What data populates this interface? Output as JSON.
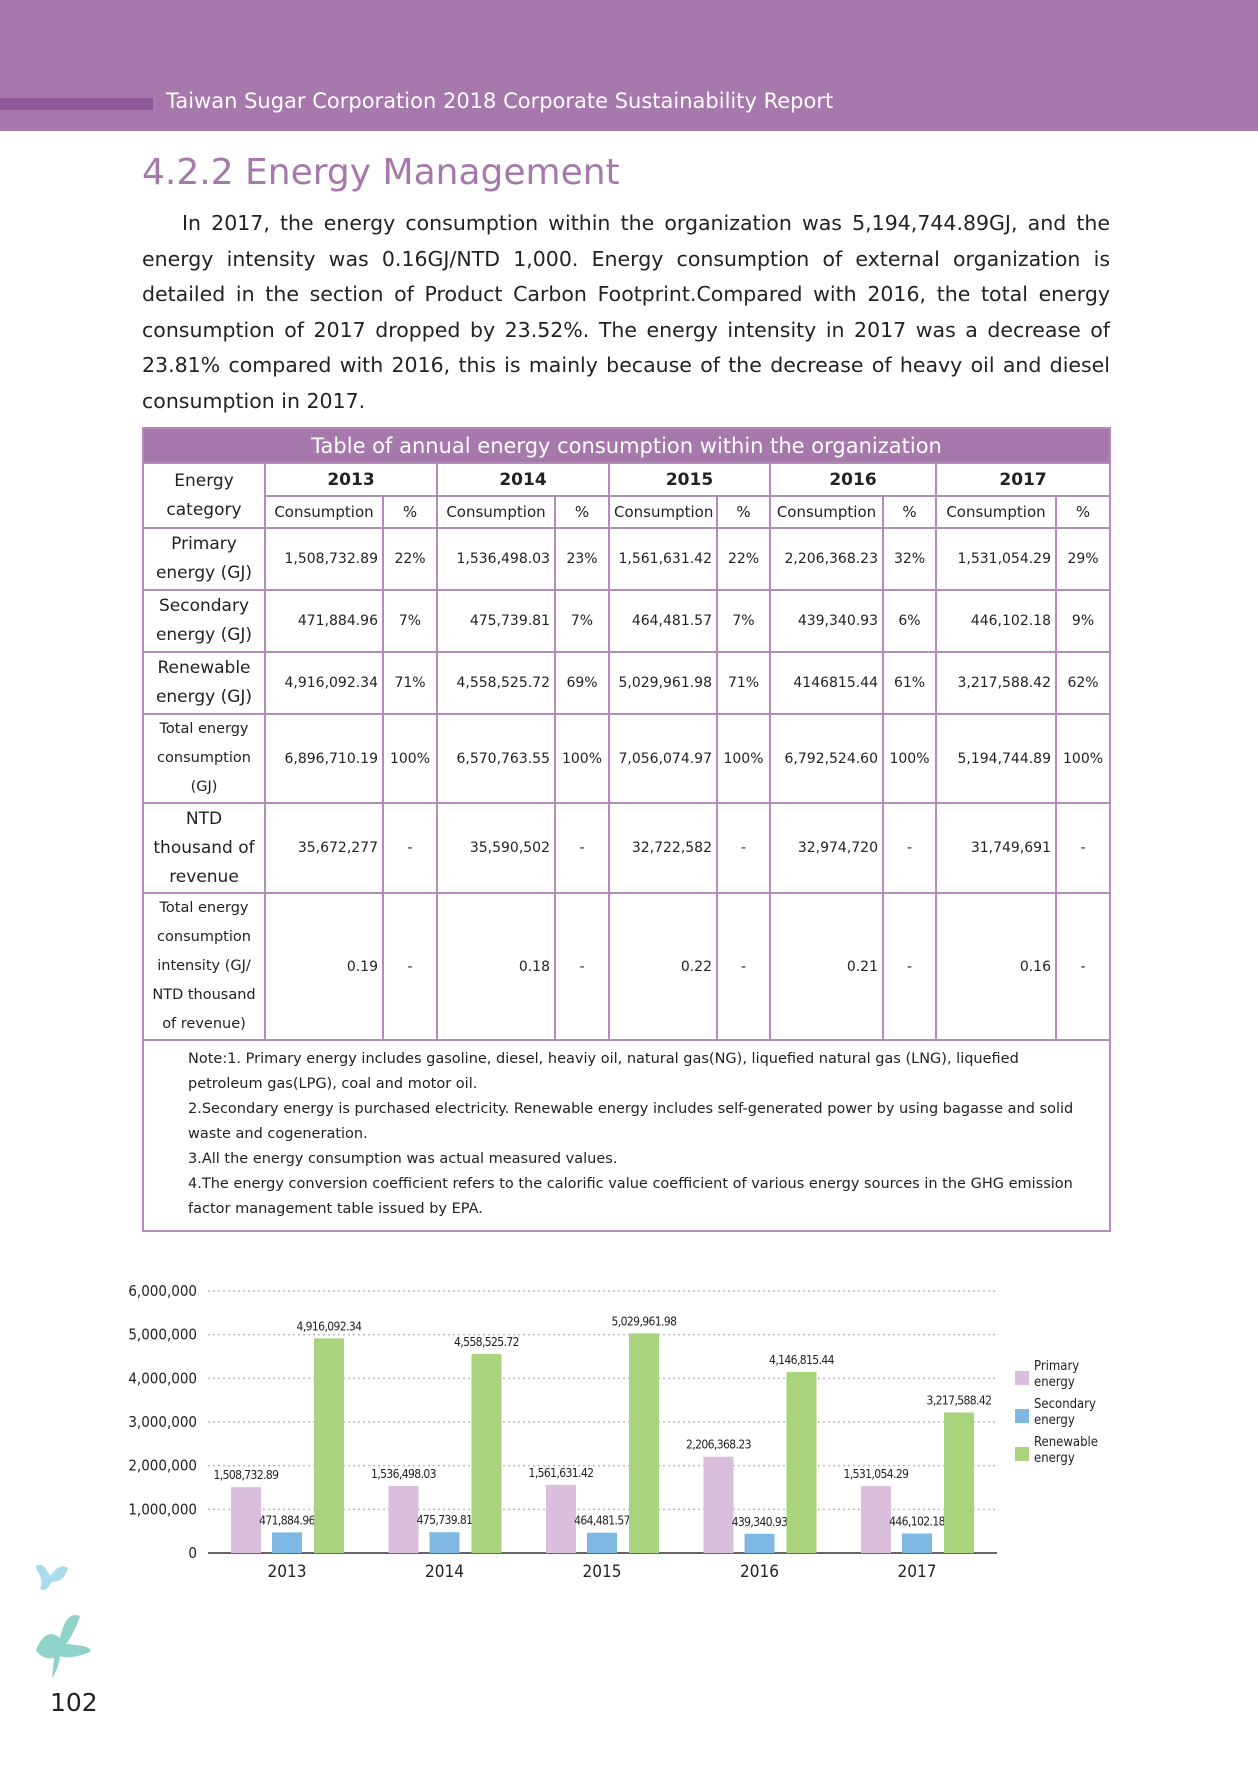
{
  "header": {
    "title": "Taiwan Sugar Corporation 2018 Corporate Sustainability Report"
  },
  "section": {
    "title": "4.2.2 Energy Management",
    "paragraph": "In 2017, the energy consumption within the organization was 5,194,744.89GJ, and the energy intensity was 0.16GJ/NTD 1,000. Energy consumption of external organization is detailed in the section of Product Carbon Footprint.Compared with 2016, the total energy consumption of 2017 dropped by 23.52%. The energy intensity in 2017 was a decrease of 23.81% compared with 2016, this is mainly because of the decrease of heavy oil and diesel consumption in 2017."
  },
  "table": {
    "title": "Table of annual energy consumption within the organization",
    "corner": "Energy category",
    "years": [
      "2013",
      "2014",
      "2015",
      "2016",
      "2017"
    ],
    "subheaders": [
      "Consumption",
      "%"
    ],
    "rows": [
      {
        "label": "Primary energy (GJ)",
        "cells": [
          "1,508,732.89",
          "22%",
          "1,536,498.03",
          "23%",
          "1,561,631.42",
          "22%",
          "2,206,368.23",
          "32%",
          "1,531,054.29",
          "29%"
        ]
      },
      {
        "label": "Secondary energy (GJ)",
        "cells": [
          "471,884.96",
          "7%",
          "475,739.81",
          "7%",
          "464,481.57",
          "7%",
          "439,340.93",
          "6%",
          "446,102.18",
          "9%"
        ]
      },
      {
        "label": "Renewable energy (GJ)",
        "cells": [
          "4,916,092.34",
          "71%",
          "4,558,525.72",
          "69%",
          "5,029,961.98",
          "71%",
          "4146815.44",
          "61%",
          "3,217,588.42",
          "62%"
        ]
      },
      {
        "label": "Total energy consumption (GJ)",
        "cells": [
          "6,896,710.19",
          "100%",
          "6,570,763.55",
          "100%",
          "7,056,074.97",
          "100%",
          "6,792,524.60",
          "100%",
          "5,194,744.89",
          "100%"
        ]
      },
      {
        "label": "NTD thousand of revenue",
        "cells": [
          "35,672,277",
          "-",
          "35,590,502",
          "-",
          "32,722,582",
          "-",
          "32,974,720",
          "-",
          "31,749,691",
          "-"
        ]
      },
      {
        "label": "Total energy consumption intensity (GJ/ NTD thousand of revenue)",
        "cells": [
          "0.19",
          "-",
          "0.18",
          "-",
          "0.22",
          "-",
          "0.21",
          "-",
          "0.16",
          "-"
        ]
      }
    ],
    "notes": [
      "Note:1. Primary energy includes gasoline, diesel, heaviy oil, natural gas(NG), liquefied natural gas (LNG), liquefied petroleum gas(LPG), coal and motor oil.",
      "2.Secondary energy is purchased electricity. Renewable energy includes self-generated power by using bagasse and solid waste and cogeneration.",
      "3.All the energy consumption was actual measured values.",
      "4.The energy conversion coefficient refers to the calorific value coefficient of various energy sources in the GHG emission factor management table issued by EPA."
    ]
  },
  "chart_data": {
    "type": "bar",
    "categories": [
      "2013",
      "2014",
      "2015",
      "2016",
      "2017"
    ],
    "series": [
      {
        "name": "Primary energy",
        "color": "#d9bfdb",
        "values": [
          1508732.89,
          1536498.03,
          1561631.42,
          2206368.23,
          1531054.29
        ],
        "value_labels": [
          "1,508,732.89",
          "1,536,498.03",
          "1,561,631.42",
          "2,206,368.23",
          "1,531,054.29"
        ]
      },
      {
        "name": "Secondary energy",
        "color": "#7fb8e3",
        "values": [
          471884.96,
          475739.81,
          464481.57,
          439340.93,
          446102.18
        ],
        "value_labels": [
          "471,884.96",
          "475,739.81",
          "464,481.57",
          "439,340.93",
          "446,102.18"
        ]
      },
      {
        "name": "Renewable energy",
        "color": "#a9d37c",
        "values": [
          4916092.34,
          4558525.72,
          5029961.98,
          4146815.44,
          3217588.42
        ],
        "value_labels": [
          "4,916,092.34",
          "4,558,525.72",
          "5,029,961.98",
          "4,146,815.44",
          "3,217,588.42"
        ]
      }
    ],
    "ylim": [
      0,
      6000000
    ],
    "yticks": [
      0,
      {
        "value": 1000000,
        "label": "1,000,000"
      },
      {
        "value": 2000000,
        "label": "2,000,000"
      },
      {
        "value": 3000000,
        "label": "3,000,000"
      },
      {
        "value": 4000000,
        "label": "4,000,000"
      },
      {
        "value": 5000000,
        "label": "5,000,000"
      },
      {
        "value": 6000000,
        "label": "6,000,000"
      }
    ],
    "grid": true,
    "legend": "right"
  },
  "page_number": "102"
}
